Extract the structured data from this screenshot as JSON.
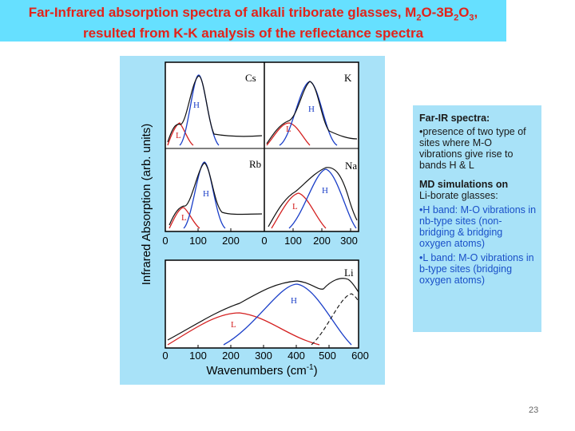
{
  "title": {
    "line1_prefix": "Far-Infrared absorption spectra of alkali triborate glasses, M",
    "sub1": "2",
    "mid1": "O-3B",
    "sub2": "2",
    "mid2": "O",
    "sub3": "3",
    "end": ",",
    "line2": "resulted from K-K analysis of the reflectance spectra"
  },
  "figure": {
    "ylabel": "Infrared Absorption (arb. units)",
    "xlabel": "Wavenumbers (cm",
    "xlabel_sup": "-1",
    "xlabel_end": ")",
    "panels": [
      {
        "name": "Cs",
        "h": "H",
        "l": "L"
      },
      {
        "name": "K",
        "h": "H",
        "l": "L"
      },
      {
        "name": "Rb",
        "h": "H",
        "l": "L"
      },
      {
        "name": "Na",
        "h": "H",
        "l": "L"
      },
      {
        "name": "Li",
        "h": "H",
        "l": "L"
      }
    ],
    "ticks_left": [
      "0",
      "100",
      "200"
    ],
    "ticks_right": [
      "0",
      "100",
      "200",
      "300"
    ],
    "ticks_bottom": [
      "0",
      "100",
      "200",
      "300",
      "400",
      "500",
      "600"
    ]
  },
  "notes": {
    "farir_title": "Far-IR spectra:",
    "farir_text": "•presence of two type of sites where M-O vibrations give rise to bands H & L",
    "md_title": "MD simulations on",
    "md_title2": "Li-borate glasses:",
    "hband": "•H band: M-O vibrations in nb-type sites (non-bridging & bridging oxygen atoms)",
    "lband": "•L band: M-O vibrations in b-type sites (bridging oxygen atoms)"
  },
  "page_number": "23",
  "colors": {
    "title_bg": "#66e0ff",
    "title_text": "#e2231a",
    "panel_bg": "#a8e2f8",
    "h_band": "#1a3ec8",
    "l_band": "#d42020"
  }
}
